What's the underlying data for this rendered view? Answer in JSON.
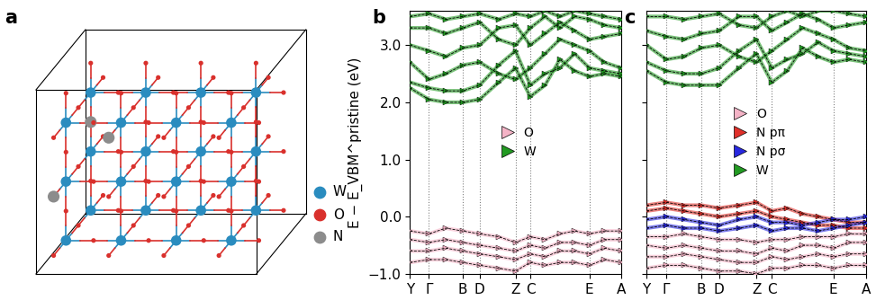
{
  "diagram": {
    "panel_label": "a",
    "legend": [
      {
        "label": "W",
        "color": "#2a8cbf"
      },
      {
        "label": "O",
        "color": "#d9302c"
      },
      {
        "label": "N",
        "color": "#8c8c8c"
      }
    ]
  },
  "chart_data": [
    {
      "type": "line",
      "panel_label": "b",
      "ylabel": "E − E_VBM^pristine (eV)",
      "x": [
        0,
        0.09,
        0.17,
        0.25,
        0.33,
        0.42,
        0.5,
        0.57,
        0.64,
        0.71,
        0.78,
        0.85,
        0.92,
        1.0
      ],
      "xlim": [
        0,
        1.0
      ],
      "xticks": [
        {
          "value": 0,
          "label": "Y"
        },
        {
          "value": 0.09,
          "label": "Γ"
        },
        {
          "value": 0.25,
          "label": "B"
        },
        {
          "value": 0.33,
          "label": "D"
        },
        {
          "value": 0.5,
          "label": "Z"
        },
        {
          "value": 0.57,
          "label": "C"
        },
        {
          "value": 0.85,
          "label": "E"
        },
        {
          "value": 1.0,
          "label": "A"
        }
      ],
      "ylim": [
        -1.0,
        3.6
      ],
      "yticks": [
        {
          "value": -1.0,
          "label": "−1.0"
        },
        {
          "value": 0.0,
          "label": "0.0"
        },
        {
          "value": 1.0,
          "label": "1.0"
        },
        {
          "value": 2.0,
          "label": "2.0"
        },
        {
          "value": 3.0,
          "label": "3.0"
        }
      ],
      "grid": "x",
      "legend": "center",
      "line_style": "dashed",
      "series": [
        {
          "name": "O",
          "color": "#f4b3c6",
          "marker": "triangle",
          "bands": [
            [
              -0.25,
              -0.3,
              -0.2,
              -0.25,
              -0.3,
              -0.35,
              -0.45,
              -0.35,
              -0.4,
              -0.3,
              -0.25,
              -0.3,
              -0.25,
              -0.25
            ],
            [
              -0.4,
              -0.45,
              -0.4,
              -0.45,
              -0.5,
              -0.55,
              -0.6,
              -0.5,
              -0.55,
              -0.45,
              -0.45,
              -0.5,
              -0.4,
              -0.4
            ],
            [
              -0.6,
              -0.6,
              -0.55,
              -0.6,
              -0.65,
              -0.7,
              -0.75,
              -0.65,
              -0.7,
              -0.6,
              -0.6,
              -0.65,
              -0.55,
              -0.6
            ],
            [
              -0.8,
              -0.75,
              -0.75,
              -0.8,
              -0.85,
              -0.9,
              -0.95,
              -0.8,
              -0.85,
              -0.8,
              -0.8,
              -0.85,
              -0.75,
              -0.8
            ]
          ]
        },
        {
          "name": "W",
          "color": "#229a22",
          "marker": "triangle",
          "bands": [
            [
              2.25,
              2.05,
              2.0,
              2.0,
              2.05,
              2.35,
              2.6,
              2.1,
              2.3,
              2.75,
              2.55,
              2.45,
              2.5,
              2.45
            ],
            [
              2.35,
              2.25,
              2.2,
              2.2,
              2.3,
              2.65,
              2.9,
              2.3,
              2.5,
              2.6,
              2.85,
              2.6,
              2.55,
              2.5
            ],
            [
              2.7,
              2.4,
              2.5,
              2.65,
              2.7,
              2.5,
              2.4,
              2.6,
              2.85,
              3.1,
              3.0,
              2.9,
              2.7,
              2.6
            ],
            [
              3.0,
              2.9,
              2.8,
              2.95,
              3.0,
              3.3,
              3.35,
              3.0,
              3.2,
              3.4,
              3.25,
              3.1,
              3.15,
              3.2
            ],
            [
              3.3,
              3.3,
              3.2,
              3.3,
              3.4,
              3.1,
              3.0,
              3.3,
              3.5,
              3.3,
              3.5,
              3.45,
              3.35,
              3.3
            ],
            [
              3.5,
              3.55,
              3.45,
              3.5,
              3.55,
              3.45,
              3.55,
              3.5,
              3.6,
              3.5,
              3.6,
              3.55,
              3.5,
              3.45
            ]
          ]
        }
      ]
    },
    {
      "type": "line",
      "panel_label": "c",
      "tick_labels": "x",
      "x": [
        0,
        0.09,
        0.17,
        0.25,
        0.33,
        0.42,
        0.5,
        0.57,
        0.64,
        0.71,
        0.78,
        0.85,
        0.92,
        1.0
      ],
      "xlim": [
        0,
        1.0
      ],
      "xticks": [
        {
          "value": 0,
          "label": "Y"
        },
        {
          "value": 0.09,
          "label": "Γ"
        },
        {
          "value": 0.25,
          "label": "B"
        },
        {
          "value": 0.33,
          "label": "D"
        },
        {
          "value": 0.5,
          "label": "Z"
        },
        {
          "value": 0.57,
          "label": "C"
        },
        {
          "value": 0.85,
          "label": "E"
        },
        {
          "value": 1.0,
          "label": "A"
        }
      ],
      "ylim": [
        -1.0,
        3.6
      ],
      "yticks": [
        -1.0,
        0.0,
        1.0,
        2.0,
        3.0
      ],
      "grid": "x",
      "legend": "center",
      "line_style": "dashed",
      "series": [
        {
          "name": "O",
          "color": "#f4b3c6",
          "marker": "triangle",
          "bands": [
            [
              -0.35,
              -0.35,
              -0.3,
              -0.35,
              -0.4,
              -0.4,
              -0.45,
              -0.4,
              -0.4,
              -0.35,
              -0.35,
              -0.35,
              -0.3,
              -0.3
            ],
            [
              -0.5,
              -0.55,
              -0.5,
              -0.55,
              -0.6,
              -0.6,
              -0.65,
              -0.55,
              -0.6,
              -0.5,
              -0.5,
              -0.55,
              -0.45,
              -0.45
            ],
            [
              -0.7,
              -0.7,
              -0.65,
              -0.7,
              -0.75,
              -0.8,
              -0.8,
              -0.7,
              -0.75,
              -0.7,
              -0.65,
              -0.7,
              -0.65,
              -0.65
            ],
            [
              -0.9,
              -0.85,
              -0.85,
              -0.9,
              -0.95,
              -0.95,
              -1.0,
              -0.9,
              -0.9,
              -0.85,
              -0.85,
              -0.9,
              -0.85,
              -0.85
            ]
          ]
        },
        {
          "name": "N pπ",
          "color": "#e0302a",
          "marker": "triangle",
          "bands": [
            [
              0.2,
              0.25,
              0.2,
              0.2,
              0.15,
              0.2,
              0.25,
              0.1,
              0.15,
              0.05,
              0.0,
              -0.05,
              -0.1,
              -0.1
            ],
            [
              0.1,
              0.15,
              0.1,
              0.05,
              0.0,
              0.05,
              0.1,
              0.0,
              -0.05,
              -0.1,
              -0.15,
              -0.15,
              -0.2,
              -0.2
            ]
          ]
        },
        {
          "name": "N pσ",
          "color": "#2828e0",
          "marker": "triangle",
          "bands": [
            [
              -0.05,
              0.0,
              -0.05,
              -0.1,
              -0.15,
              -0.05,
              0.0,
              -0.1,
              -0.1,
              -0.15,
              -0.1,
              -0.05,
              -0.05,
              0.0
            ],
            [
              -0.2,
              -0.15,
              -0.2,
              -0.2,
              -0.25,
              -0.2,
              -0.15,
              -0.25,
              -0.2,
              -0.2,
              -0.25,
              -0.2,
              -0.15,
              -0.1
            ]
          ]
        },
        {
          "name": "W",
          "color": "#229a22",
          "marker": "triangle",
          "bands": [
            [
              2.55,
              2.35,
              2.3,
              2.3,
              2.3,
              2.6,
              2.85,
              2.35,
              2.55,
              2.95,
              2.8,
              2.7,
              2.75,
              2.7
            ],
            [
              2.7,
              2.55,
              2.5,
              2.5,
              2.6,
              2.9,
              3.1,
              2.6,
              2.75,
              2.85,
              3.05,
              2.9,
              2.85,
              2.8
            ],
            [
              3.0,
              2.75,
              2.8,
              2.95,
              3.0,
              2.8,
              2.7,
              2.9,
              3.1,
              3.3,
              3.2,
              3.1,
              2.95,
              2.9
            ],
            [
              3.25,
              3.15,
              3.1,
              3.2,
              3.25,
              3.5,
              3.5,
              3.25,
              3.4,
              3.55,
              3.45,
              3.3,
              3.35,
              3.4
            ],
            [
              3.5,
              3.5,
              3.45,
              3.5,
              3.55,
              3.35,
              3.3,
              3.5,
              3.6,
              3.5,
              3.6,
              3.6,
              3.55,
              3.5
            ]
          ]
        }
      ]
    }
  ]
}
